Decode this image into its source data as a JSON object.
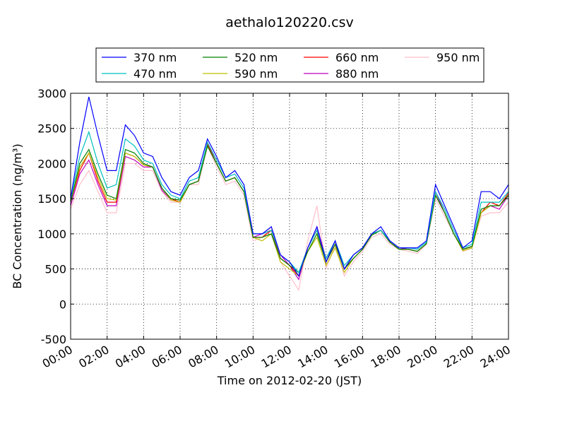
{
  "chart_data": {
    "type": "line",
    "title": "aethalo120220.csv",
    "xlabel": "Time on 2012-02-20 (JST)",
    "ylabel": "BC Concentration (ng/m³)",
    "x": [
      0,
      0.5,
      1,
      1.5,
      2,
      2.5,
      3,
      3.5,
      4,
      4.5,
      5,
      5.5,
      6,
      6.5,
      7,
      7.5,
      8,
      8.5,
      9,
      9.5,
      10,
      10.5,
      11,
      11.5,
      12,
      12.5,
      13,
      13.5,
      14,
      14.5,
      15,
      15.5,
      16,
      16.5,
      17,
      17.5,
      18,
      18.5,
      19,
      19.5,
      20,
      20.5,
      21,
      21.5,
      22,
      22.5,
      23,
      23.5,
      24
    ],
    "xlim": [
      0,
      24
    ],
    "xticks": [
      {
        "value": 0,
        "label": "00:00"
      },
      {
        "value": 2,
        "label": "02:00"
      },
      {
        "value": 4,
        "label": "04:00"
      },
      {
        "value": 6,
        "label": "06:00"
      },
      {
        "value": 8,
        "label": "08:00"
      },
      {
        "value": 10,
        "label": "10:00"
      },
      {
        "value": 12,
        "label": "12:00"
      },
      {
        "value": 14,
        "label": "14:00"
      },
      {
        "value": 16,
        "label": "16:00"
      },
      {
        "value": 18,
        "label": "18:00"
      },
      {
        "value": 20,
        "label": "20:00"
      },
      {
        "value": 22,
        "label": "22:00"
      },
      {
        "value": 24,
        "label": "24:00"
      }
    ],
    "ylim": [
      -500,
      3000
    ],
    "yticks": [
      -500,
      0,
      500,
      1000,
      1500,
      2000,
      2500,
      3000
    ],
    "grid": true,
    "legend": "top",
    "series": [
      {
        "name": "370 nm",
        "color": "#0000ff",
        "values": [
          1500,
          2300,
          2950,
          2400,
          1900,
          1900,
          2550,
          2400,
          2150,
          2100,
          1800,
          1600,
          1550,
          1800,
          1900,
          2350,
          2100,
          1800,
          1900,
          1700,
          1000,
          1000,
          1100,
          700,
          600,
          400,
          800,
          1100,
          600,
          900,
          500,
          700,
          800,
          1000,
          1100,
          900,
          800,
          800,
          800,
          900,
          1700,
          1400,
          1100,
          800,
          900,
          1600,
          1600,
          1500,
          1700
        ]
      },
      {
        "name": "470 nm",
        "color": "#00bfbf",
        "values": [
          1500,
          2100,
          2450,
          2000,
          1650,
          1700,
          2350,
          2250,
          2050,
          2000,
          1700,
          1550,
          1500,
          1750,
          1800,
          2300,
          2050,
          1800,
          1850,
          1650,
          1000,
          1000,
          1050,
          700,
          600,
          450,
          800,
          1050,
          650,
          900,
          550,
          700,
          800,
          1000,
          1050,
          900,
          800,
          800,
          780,
          880,
          1600,
          1350,
          1050,
          800,
          850,
          1450,
          1450,
          1450,
          1600
        ]
      },
      {
        "name": "520 nm",
        "color": "#008000",
        "values": [
          1450,
          2000,
          2200,
          1850,
          1550,
          1500,
          2200,
          2150,
          2000,
          1950,
          1650,
          1500,
          1480,
          1700,
          1750,
          2250,
          2000,
          1750,
          1800,
          1600,
          950,
          950,
          1000,
          650,
          550,
          450,
          750,
          1000,
          600,
          850,
          500,
          650,
          780,
          980,
          1050,
          880,
          780,
          780,
          750,
          860,
          1550,
          1300,
          1000,
          780,
          820,
          1350,
          1400,
          1400,
          1550
        ]
      },
      {
        "name": "590 nm",
        "color": "#bfbf00",
        "values": [
          1450,
          1950,
          2150,
          1800,
          1500,
          1480,
          2150,
          2100,
          1980,
          1950,
          1650,
          1480,
          1450,
          1700,
          1750,
          2250,
          2000,
          1750,
          1800,
          1600,
          950,
          900,
          1000,
          600,
          500,
          400,
          750,
          950,
          550,
          800,
          450,
          650,
          780,
          980,
          1050,
          880,
          780,
          780,
          750,
          860,
          1550,
          1300,
          1000,
          760,
          800,
          1300,
          1400,
          1400,
          1550
        ]
      },
      {
        "name": "660 nm",
        "color": "#ff0000",
        "values": [
          1450,
          1900,
          2150,
          1750,
          1450,
          1450,
          2150,
          2100,
          1980,
          1950,
          1650,
          1500,
          1450,
          1700,
          1750,
          2280,
          2000,
          1750,
          1800,
          1600,
          950,
          950,
          1050,
          650,
          550,
          400,
          800,
          1050,
          600,
          850,
          500,
          650,
          780,
          1000,
          1050,
          880,
          780,
          780,
          750,
          860,
          1550,
          1300,
          1000,
          780,
          820,
          1300,
          1450,
          1400,
          1580
        ]
      },
      {
        "name": "880 nm",
        "color": "#bf00bf",
        "values": [
          1400,
          1850,
          2050,
          1700,
          1400,
          1400,
          2100,
          2050,
          1950,
          1950,
          1620,
          1480,
          1450,
          1700,
          1750,
          2300,
          2000,
          1750,
          1800,
          1600,
          950,
          1000,
          1050,
          700,
          550,
          350,
          800,
          1100,
          650,
          900,
          500,
          700,
          800,
          1000,
          1050,
          900,
          800,
          780,
          750,
          860,
          1600,
          1300,
          1000,
          780,
          820,
          1300,
          1400,
          1350,
          1550
        ]
      },
      {
        "name": "950 nm",
        "color": "#ffc0cb",
        "values": [
          1350,
          1700,
          1900,
          1600,
          1300,
          1300,
          2000,
          2000,
          1900,
          1900,
          1600,
          1450,
          1450,
          1700,
          1700,
          2250,
          1950,
          1700,
          1750,
          1550,
          900,
          950,
          1100,
          600,
          400,
          200,
          900,
          1400,
          500,
          850,
          400,
          600,
          750,
          950,
          1000,
          850,
          780,
          750,
          720,
          850,
          1500,
          1250,
          1000,
          750,
          800,
          1250,
          1300,
          1300,
          1450
        ]
      }
    ]
  }
}
